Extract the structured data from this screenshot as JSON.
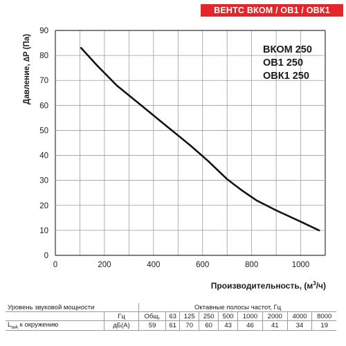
{
  "header": {
    "badge": "ВЕНТС ВКОМ / ОВ1 / ОВК1"
  },
  "chart_data": {
    "type": "line",
    "xlabel_main": "Производительность, (м",
    "xlabel_sup": "3",
    "xlabel_end": "/ч)",
    "ylabel": "Давление, ∆P (Па)",
    "xlim": [
      0,
      1100
    ],
    "ylim": [
      0,
      90
    ],
    "x_ticks": [
      0,
      200,
      400,
      600,
      800,
      1000
    ],
    "y_ticks": [
      0,
      10,
      20,
      30,
      40,
      50,
      60,
      70,
      80,
      90
    ],
    "grid": true,
    "series": [
      {
        "color": "#111111",
        "points": [
          [
            105,
            83
          ],
          [
            170,
            76
          ],
          [
            250,
            68
          ],
          [
            350,
            60
          ],
          [
            450,
            52
          ],
          [
            550,
            44
          ],
          [
            620,
            38
          ],
          [
            700,
            30.5
          ],
          [
            760,
            26
          ],
          [
            820,
            22
          ],
          [
            900,
            18
          ],
          [
            1000,
            13.5
          ],
          [
            1075,
            10
          ]
        ]
      }
    ],
    "annotations": [
      "ВКОМ 250",
      "ОВ1 250",
      "ОВК1 250"
    ]
  },
  "sound_table": {
    "row1": {
      "label": "Уровень звуковой мощности",
      "header": "Октавные полосы частот, Гц"
    },
    "row2": {
      "unit": "Гц",
      "bands": [
        "Общ.",
        "63",
        "125",
        "250",
        "500",
        "1000",
        "2000",
        "4000",
        "8000"
      ]
    },
    "row3": {
      "label_main": "L",
      "label_sub": "wA",
      "label_rest": " к окружению",
      "unit": "дБ(А)",
      "values": [
        "59",
        "61",
        "70",
        "60",
        "43",
        "46",
        "41",
        "34",
        "19"
      ]
    }
  }
}
